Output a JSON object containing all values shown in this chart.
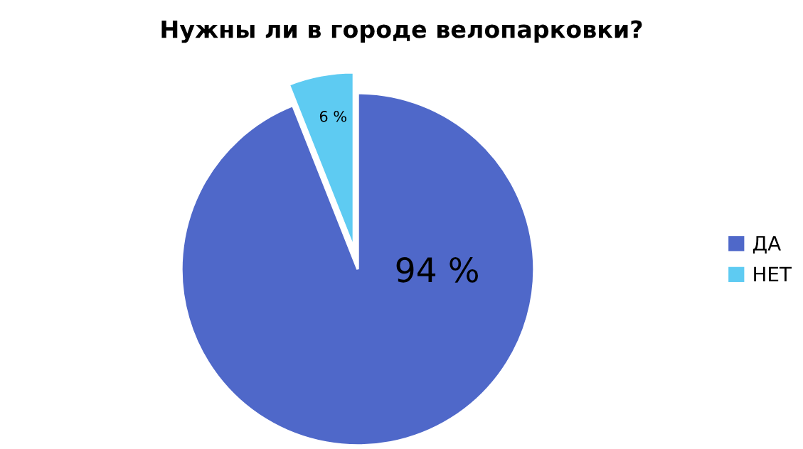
{
  "chart_data": {
    "type": "pie",
    "title": "Нужны ли в городе велопарковки?",
    "categories": [
      "ДА",
      "НЕТ"
    ],
    "values": [
      94,
      6
    ],
    "colors": [
      "#4f68c9",
      "#5ecbf2"
    ],
    "value_labels": [
      "94 %",
      "6 %"
    ],
    "legend": "right"
  }
}
